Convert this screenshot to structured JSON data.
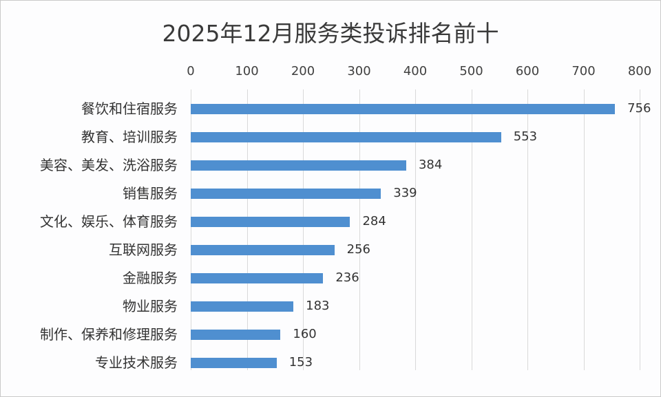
{
  "chart_data": {
    "type": "bar",
    "orientation": "horizontal",
    "title": "2025年12月服务类投诉排名前十",
    "xlabel": "",
    "ylabel": "",
    "xlim": [
      0,
      800
    ],
    "x_ticks": [
      "0",
      "100",
      "200",
      "300",
      "400",
      "500",
      "600",
      "700",
      "800"
    ],
    "x_axis_position": "top",
    "grid": true,
    "legend": null,
    "data_labels": true,
    "bar_color": "#4f8fd0",
    "categories": [
      "餐饮和住宿服务",
      "教育、培训服务",
      "美容、美发、洗浴服务",
      "销售服务",
      "文化、娱乐、体育服务",
      "互联网服务",
      "金融服务",
      "物业服务",
      "制作、保养和修理服务",
      "专业技术服务"
    ],
    "values": [
      756,
      553,
      384,
      339,
      284,
      256,
      236,
      183,
      160,
      153
    ],
    "labels": [
      "756",
      "553",
      "384",
      "339",
      "284",
      "256",
      "236",
      "183",
      "160",
      "153"
    ]
  }
}
